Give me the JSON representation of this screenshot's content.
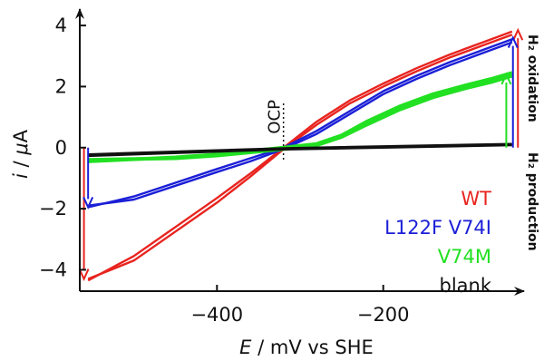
{
  "chart_data": {
    "type": "line",
    "title": "",
    "xlabel_italic": "E",
    "xlabel_rest": " / mV vs SHE",
    "ylabel_italic": "i",
    "ylabel_sep": " / ",
    "ylabel_mu": "μ",
    "ylabel_unit": "A",
    "xlim": [
      -565,
      -35
    ],
    "ylim": [
      -4.7,
      4.3
    ],
    "x_ticks": [
      -400,
      -200
    ],
    "x_tick_labels": [
      "−400",
      "−200"
    ],
    "y_ticks": [
      4,
      2,
      0,
      -2,
      -4
    ],
    "y_tick_labels": [
      "4",
      "2",
      "0",
      "−2",
      "−4"
    ],
    "ocp": {
      "label": "OCP",
      "x": -320
    },
    "side_labels": {
      "oxidation": "H₂ oxidation",
      "production": "H₂ production"
    },
    "legend_placement": "lower-right",
    "series": [
      {
        "name": "WT",
        "color": "#e8241f",
        "forward": [
          [
            -555,
            -4.35
          ],
          [
            -500,
            -3.55
          ],
          [
            -450,
            -2.6
          ],
          [
            -400,
            -1.65
          ],
          [
            -360,
            -0.85
          ],
          [
            -320,
            0.0
          ],
          [
            -280,
            0.85
          ],
          [
            -240,
            1.55
          ],
          [
            -200,
            2.1
          ],
          [
            -160,
            2.6
          ],
          [
            -120,
            3.05
          ],
          [
            -80,
            3.45
          ],
          [
            -45,
            3.8
          ]
        ],
        "reverse": [
          [
            -45,
            3.7
          ],
          [
            -80,
            3.35
          ],
          [
            -120,
            2.95
          ],
          [
            -160,
            2.5
          ],
          [
            -200,
            2.0
          ],
          [
            -240,
            1.45
          ],
          [
            -280,
            0.75
          ],
          [
            -320,
            -0.05
          ],
          [
            -360,
            -0.95
          ],
          [
            -400,
            -1.8
          ],
          [
            -450,
            -2.75
          ],
          [
            -500,
            -3.7
          ],
          [
            -555,
            -4.3
          ]
        ]
      },
      {
        "name": "L122F V74I",
        "color": "#1b1fd6",
        "forward": [
          [
            -555,
            -1.95
          ],
          [
            -500,
            -1.6
          ],
          [
            -450,
            -1.15
          ],
          [
            -400,
            -0.7
          ],
          [
            -360,
            -0.35
          ],
          [
            -320,
            0.0
          ],
          [
            -280,
            0.55
          ],
          [
            -240,
            1.2
          ],
          [
            -200,
            1.85
          ],
          [
            -160,
            2.35
          ],
          [
            -120,
            2.8
          ],
          [
            -80,
            3.2
          ],
          [
            -45,
            3.55
          ]
        ],
        "reverse": [
          [
            -45,
            3.45
          ],
          [
            -80,
            3.1
          ],
          [
            -120,
            2.7
          ],
          [
            -160,
            2.25
          ],
          [
            -200,
            1.75
          ],
          [
            -240,
            1.1
          ],
          [
            -280,
            0.45
          ],
          [
            -320,
            -0.05
          ],
          [
            -360,
            -0.45
          ],
          [
            -400,
            -0.8
          ],
          [
            -450,
            -1.25
          ],
          [
            -500,
            -1.7
          ],
          [
            -555,
            -1.9
          ]
        ]
      },
      {
        "name": "V74M",
        "color": "#22e022",
        "forward": [
          [
            -555,
            -0.45
          ],
          [
            -450,
            -0.32
          ],
          [
            -400,
            -0.22
          ],
          [
            -320,
            0.0
          ],
          [
            -280,
            0.12
          ],
          [
            -250,
            0.4
          ],
          [
            -220,
            0.85
          ],
          [
            -180,
            1.35
          ],
          [
            -140,
            1.75
          ],
          [
            -100,
            2.05
          ],
          [
            -70,
            2.25
          ],
          [
            -45,
            2.45
          ]
        ],
        "reverse": [
          [
            -45,
            2.35
          ],
          [
            -70,
            2.15
          ],
          [
            -100,
            1.95
          ],
          [
            -140,
            1.65
          ],
          [
            -180,
            1.25
          ],
          [
            -220,
            0.75
          ],
          [
            -250,
            0.35
          ],
          [
            -280,
            0.08
          ],
          [
            -320,
            -0.05
          ],
          [
            -400,
            -0.26
          ],
          [
            -450,
            -0.35
          ],
          [
            -555,
            -0.4
          ]
        ]
      },
      {
        "name": "blank",
        "color": "#111111",
        "forward": [
          [
            -555,
            -0.22
          ],
          [
            -320,
            -0.02
          ],
          [
            -45,
            0.12
          ]
        ],
        "reverse": [
          [
            -45,
            0.08
          ],
          [
            -320,
            -0.06
          ],
          [
            -555,
            -0.27
          ]
        ]
      }
    ],
    "arrows": [
      {
        "color": "#e8241f",
        "x": -560,
        "from": 0.0,
        "to": -4.3
      },
      {
        "color": "#1b1fd6",
        "x": -555,
        "from": 0.0,
        "to": -1.95
      },
      {
        "color": "#e8241f",
        "x": -38,
        "from": 0.0,
        "to": 3.85
      },
      {
        "color": "#1b1fd6",
        "x": -44,
        "from": 0.0,
        "to": 3.6
      },
      {
        "color": "#22e022",
        "x": -52,
        "from": 0.0,
        "to": 2.4
      }
    ]
  }
}
